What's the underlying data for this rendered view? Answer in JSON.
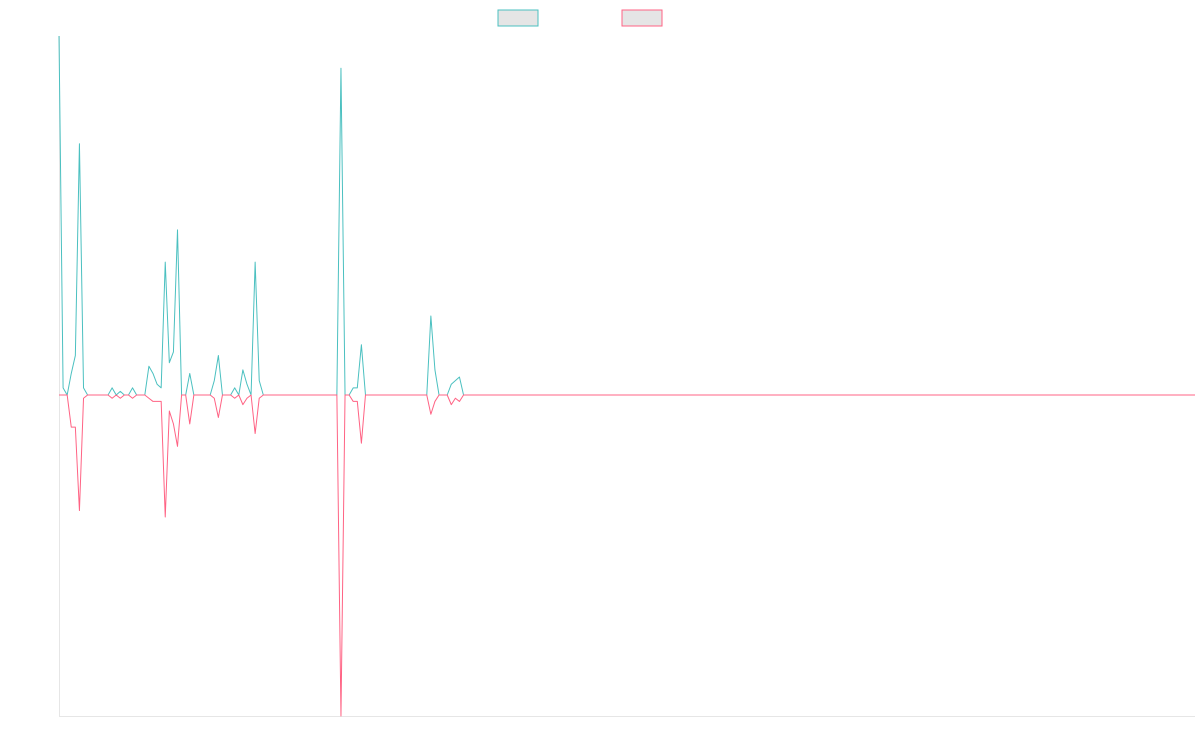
{
  "chart_data": {
    "type": "line",
    "title": "",
    "xlabel": "",
    "ylabel": "",
    "ylim": [
      -1,
      1
    ],
    "grid": false,
    "legend": {
      "position": "top",
      "show": true
    },
    "series": [
      {
        "color": "#4bc0c0",
        "fill": "#e5e5e5",
        "values": [
          1.0,
          0.02,
          0.0,
          0.06,
          0.11,
          0.7,
          0.02,
          0.0,
          0.0,
          0.0,
          0.0,
          0.0,
          0.0,
          0.02,
          0.0,
          0.01,
          0.0,
          0.0,
          0.02,
          0.0,
          0.0,
          0.0,
          0.08,
          0.06,
          0.03,
          0.02,
          0.37,
          0.09,
          0.12,
          0.46,
          0.0,
          0.0,
          0.06,
          0.0,
          0.0,
          0.0,
          0.0,
          0.0,
          0.04,
          0.11,
          0.0,
          0.0,
          0.0,
          0.02,
          0.0,
          0.07,
          0.03,
          0.0,
          0.37,
          0.04,
          0.0,
          0.0,
          0.0,
          0.0,
          0.0,
          0.0,
          0.0,
          0.0,
          0.0,
          0.0,
          0.0,
          0.0,
          0.0,
          0.0,
          0.0,
          0.0,
          0.0,
          0.0,
          0.0,
          0.91,
          0.0,
          0.0,
          0.02,
          0.02,
          0.14,
          0.0,
          0.0,
          0.0,
          0.0,
          0.0,
          0.0,
          0.0,
          0.0,
          0.0,
          0.0,
          0.0,
          0.0,
          0.0,
          0.0,
          0.0,
          0.0,
          0.22,
          0.07,
          0.0,
          0.0,
          0.0,
          0.03,
          0.04,
          0.05,
          0.0,
          0.0,
          0.0,
          0.0,
          0.0,
          0.0,
          0.0,
          0.0,
          0.0,
          0.0,
          0.0,
          0.0,
          0.0,
          0.0,
          0.0,
          0.0,
          0.0,
          0.0,
          0.0,
          0.0,
          0.0,
          0.0,
          0.0,
          0.0,
          0.0,
          0.0,
          0.0,
          0.0,
          0.0,
          0.0,
          0.0,
          0.0,
          0.0,
          0.0,
          0.0,
          0.0,
          0.0,
          0.0,
          0.0,
          0.0,
          0.0,
          0.0,
          0.0,
          0.0,
          0.0,
          0.0,
          0.0,
          0.0,
          0.0,
          0.0,
          0.0,
          0.0,
          0.0,
          0.0,
          0.0,
          0.0,
          0.0,
          0.0,
          0.0,
          0.0,
          0.0,
          0.0,
          0.0,
          0.0,
          0.0,
          0.0,
          0.0,
          0.0,
          0.0,
          0.0,
          0.0,
          0.0,
          0.0,
          0.0,
          0.0,
          0.0,
          0.0,
          0.0,
          0.0,
          0.0,
          0.0,
          0.0,
          0.0,
          0.0,
          0.0,
          0.0,
          0.0,
          0.0,
          0.0,
          0.0,
          0.0,
          0.0,
          0.0,
          0.0,
          0.0,
          0.0,
          0.0,
          0.0,
          0.0,
          0.0,
          0.0,
          0.0,
          0.0,
          0.0,
          0.0,
          0.0,
          0.0,
          0.0,
          0.0,
          0.0,
          0.0,
          0.0,
          0.0,
          0.0,
          0.0,
          0.0,
          0.0,
          0.0,
          0.0,
          0.0,
          0.0,
          0.0,
          0.0,
          0.0,
          0.0,
          0.0,
          0.0,
          0.0,
          0.0,
          0.0,
          0.0,
          0.0,
          0.0,
          0.0,
          0.0,
          0.0,
          0.0,
          0.0,
          0.0,
          0.0,
          0.0,
          0.0,
          0.0,
          0.0,
          0.0,
          0.0,
          0.0,
          0.0,
          0.0,
          0.0,
          0.0,
          0.0,
          0.0,
          0.0,
          0.0,
          0.0,
          0.0,
          0.0,
          0.0,
          0.0,
          0.0,
          0.0,
          0.0,
          0.0,
          0.0,
          0.0,
          0.0,
          0.0,
          0.0,
          0.0,
          0.0,
          0.0,
          0.0,
          0.0,
          0.0,
          0.0,
          0.0,
          0.0,
          0.0,
          0.0
        ]
      },
      {
        "color": "#ff6384",
        "fill": "#e5e5e5",
        "values": [
          0.0,
          0.0,
          0.0,
          -0.1,
          -0.1,
          -0.36,
          -0.01,
          0.0,
          0.0,
          0.0,
          0.0,
          0.0,
          0.0,
          -0.01,
          0.0,
          -0.01,
          0.0,
          0.0,
          -0.01,
          0.0,
          0.0,
          0.0,
          -0.01,
          -0.02,
          -0.02,
          -0.02,
          -0.38,
          -0.05,
          -0.09,
          -0.16,
          0.0,
          0.0,
          -0.09,
          0.0,
          0.0,
          0.0,
          0.0,
          0.0,
          -0.01,
          -0.07,
          0.0,
          0.0,
          0.0,
          -0.01,
          0.0,
          -0.03,
          -0.01,
          0.0,
          -0.12,
          -0.01,
          0.0,
          0.0,
          0.0,
          0.0,
          0.0,
          0.0,
          0.0,
          0.0,
          0.0,
          0.0,
          0.0,
          0.0,
          0.0,
          0.0,
          0.0,
          0.0,
          0.0,
          0.0,
          0.0,
          -1.0,
          0.0,
          0.0,
          -0.02,
          -0.02,
          -0.15,
          0.0,
          0.0,
          0.0,
          0.0,
          0.0,
          0.0,
          0.0,
          0.0,
          0.0,
          0.0,
          0.0,
          0.0,
          0.0,
          0.0,
          0.0,
          0.0,
          -0.06,
          -0.02,
          0.0,
          0.0,
          0.0,
          -0.03,
          -0.01,
          -0.02,
          0.0,
          0.0,
          0.0,
          0.0,
          0.0,
          0.0,
          0.0,
          0.0,
          0.0,
          0.0,
          0.0,
          0.0,
          0.0,
          0.0,
          0.0,
          0.0,
          0.0,
          0.0,
          0.0,
          0.0,
          0.0,
          0.0,
          0.0,
          0.0,
          0.0,
          0.0,
          0.0,
          0.0,
          0.0,
          0.0,
          0.0,
          0.0,
          0.0,
          0.0,
          0.0,
          0.0,
          0.0,
          0.0,
          0.0,
          0.0,
          0.0,
          0.0,
          0.0,
          0.0,
          0.0,
          0.0,
          0.0,
          0.0,
          0.0,
          0.0,
          0.0,
          0.0,
          0.0,
          0.0,
          0.0,
          0.0,
          0.0,
          0.0,
          0.0,
          0.0,
          0.0,
          0.0,
          0.0,
          0.0,
          0.0,
          0.0,
          0.0,
          0.0,
          0.0,
          0.0,
          0.0,
          0.0,
          0.0,
          0.0,
          0.0,
          0.0,
          0.0,
          0.0,
          0.0,
          0.0,
          0.0,
          0.0,
          0.0,
          0.0,
          0.0,
          0.0,
          0.0,
          0.0,
          0.0,
          0.0,
          0.0,
          0.0,
          0.0,
          0.0,
          0.0,
          0.0,
          0.0,
          0.0,
          0.0,
          0.0,
          0.0,
          0.0,
          0.0,
          0.0,
          0.0,
          0.0,
          0.0,
          0.0,
          0.0,
          0.0,
          0.0,
          0.0,
          0.0,
          0.0,
          0.0,
          0.0,
          0.0,
          0.0,
          0.0,
          0.0,
          0.0,
          0.0,
          0.0,
          0.0,
          0.0,
          0.0,
          0.0,
          0.0,
          0.0,
          0.0,
          0.0,
          0.0,
          0.0,
          0.0,
          0.0,
          0.0,
          0.0,
          0.0,
          0.0,
          0.0,
          0.0,
          0.0,
          0.0,
          0.0,
          0.0,
          0.0,
          0.0,
          0.0,
          0.0,
          0.0,
          0.0,
          0.0,
          0.0,
          0.0,
          0.0,
          0.0,
          0.0,
          0.0,
          0.0,
          0.0,
          0.0,
          0.0,
          0.0,
          0.0,
          0.0,
          0.0,
          0.0,
          0.0,
          0.0,
          0.0,
          0.0,
          0.0,
          0.0,
          0.0,
          0.0,
          0.0,
          0.0,
          0.0,
          0.0,
          0.0
        ]
      }
    ]
  }
}
